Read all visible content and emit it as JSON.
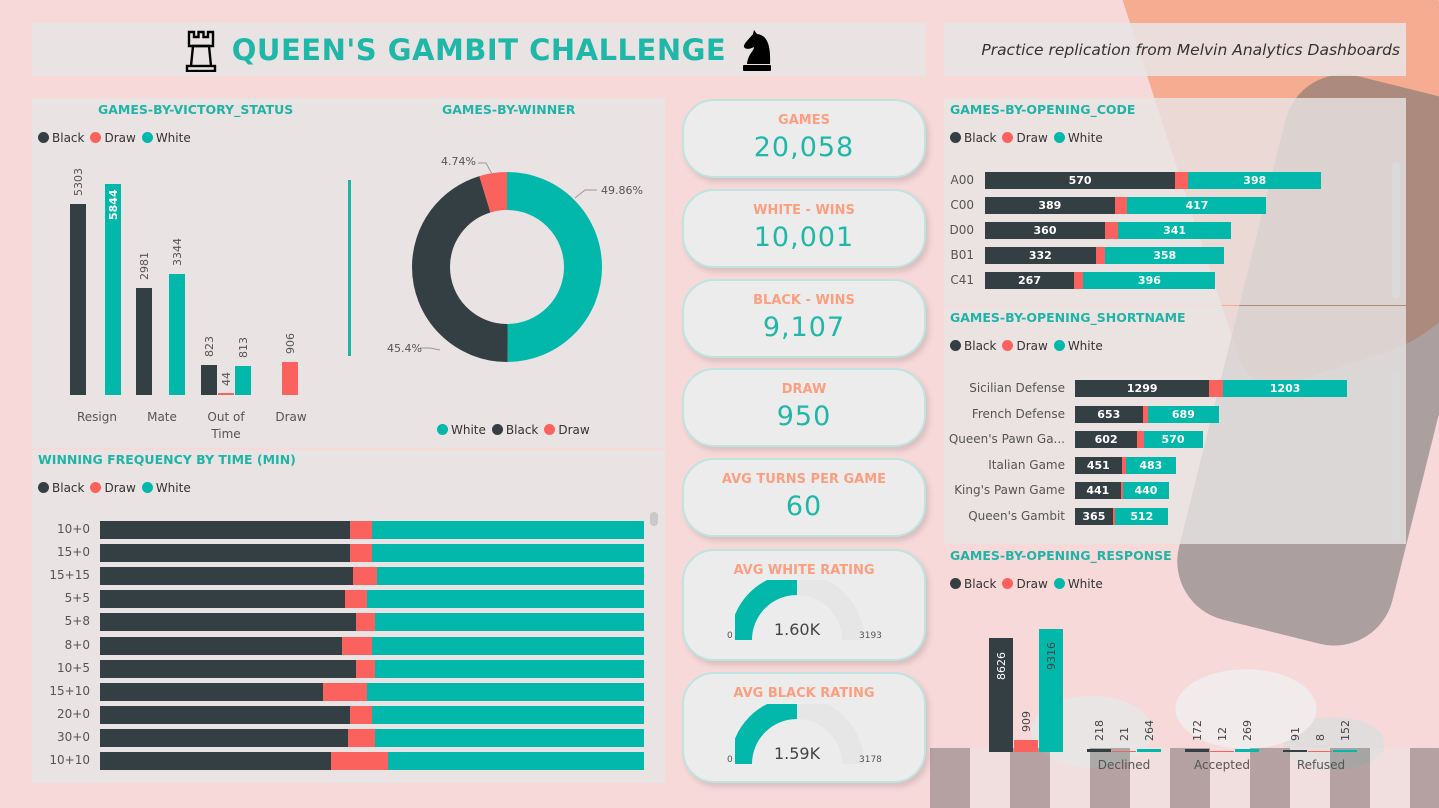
{
  "header": {
    "title": "QUEEN'S GAMBIT CHALLENGE",
    "credit": "Practice replication from Melvin Analytics Dashboards",
    "left_icon": "rook-icon",
    "right_icon": "knight-icon"
  },
  "legend": {
    "black": "Black",
    "draw": "Draw",
    "white": "White"
  },
  "colors": {
    "black": "#343f44",
    "draw": "#fc625d",
    "white": "#01b8aa",
    "accent": "#1fb8a8",
    "kpi_label": "#fb9f80"
  },
  "victory_status": {
    "title": "GAMES-BY-VICTORY_STATUS",
    "chart_data": {
      "type": "bar",
      "categories": [
        "Resign",
        "Mate",
        "Out of Time",
        "Draw"
      ],
      "series": [
        {
          "name": "Black",
          "values": [
            5303,
            2981,
            823,
            null
          ]
        },
        {
          "name": "Draw",
          "values": [
            null,
            null,
            44,
            906
          ]
        },
        {
          "name": "White",
          "values": [
            5844,
            3344,
            813,
            null
          ]
        }
      ]
    },
    "labels": {
      "resign": "Resign",
      "mate": "Mate",
      "oot_1": "Out of",
      "oot_2": "Time",
      "draw": "Draw"
    }
  },
  "winner": {
    "title": "GAMES-BY-WINNER",
    "chart_data": {
      "type": "pie",
      "labels": [
        "White",
        "Black",
        "Draw"
      ],
      "values": [
        49.86,
        45.4,
        4.74
      ]
    },
    "pct_white": "49.86%",
    "pct_black": "45.4%",
    "pct_draw": "4.74%"
  },
  "kpis": {
    "games": {
      "label": "GAMES",
      "value": "20,058"
    },
    "white_wins": {
      "label": "WHITE - WINS",
      "value": "10,001"
    },
    "black_wins": {
      "label": "BLACK - WINS",
      "value": "9,107"
    },
    "draw": {
      "label": "DRAW",
      "value": "950"
    },
    "avg_turns": {
      "label": "AVG TURNS PER GAME",
      "value": "60"
    },
    "avg_white_rating": {
      "label": "AVG WHITE RATING",
      "value": "1.60K",
      "min": "0",
      "max": "3193",
      "fill": 0.5
    },
    "avg_black_rating": {
      "label": "AVG BLACK RATING",
      "value": "1.59K",
      "min": "0",
      "max": "3178",
      "fill": 0.5
    }
  },
  "time_freq": {
    "title": "WINNING FREQUENCY BY TIME (MIN)",
    "chart_data": {
      "type": "bar",
      "orientation": "horizontal-100%-stacked",
      "categories": [
        "10+0",
        "15+0",
        "15+15",
        "5+5",
        "5+8",
        "8+0",
        "10+5",
        "15+10",
        "20+0",
        "30+0",
        "10+10"
      ],
      "series": [
        {
          "name": "Black",
          "values": [
            46,
            46,
            46.5,
            45,
            47,
            44.5,
            47,
            41,
            46,
            45.5,
            42.5
          ]
        },
        {
          "name": "Draw",
          "values": [
            4,
            4,
            4.5,
            4,
            3.5,
            5.5,
            3.5,
            8,
            4,
            5,
            10.5
          ]
        },
        {
          "name": "White",
          "values": [
            50,
            50,
            49,
            51,
            49.5,
            50,
            49.5,
            51,
            50,
            49.5,
            47
          ]
        }
      ]
    }
  },
  "opening_code": {
    "title": "GAMES-BY-OPENING_CODE",
    "chart_data": {
      "type": "bar",
      "orientation": "horizontal-stacked",
      "categories": [
        "A00",
        "C00",
        "D00",
        "B01",
        "C41"
      ],
      "series": [
        {
          "name": "Black",
          "values": [
            570,
            389,
            360,
            332,
            267
          ]
        },
        {
          "name": "Draw",
          "values": [
            40,
            38,
            38,
            28,
            28
          ]
        },
        {
          "name": "White",
          "values": [
            398,
            417,
            341,
            358,
            396
          ]
        }
      ]
    }
  },
  "opening_shortname": {
    "title": "GAMES-BY-OPENING_SHORTNAME",
    "chart_data": {
      "type": "bar",
      "orientation": "horizontal-stacked",
      "categories": [
        "Sicilian Defense",
        "French Defense",
        "Queen's Pawn Ga...",
        "Italian Game",
        "King's Pawn Game",
        "Queen's Gambit"
      ],
      "series": [
        {
          "name": "Black",
          "values": [
            1299,
            653,
            602,
            451,
            441,
            365
          ]
        },
        {
          "name": "Draw",
          "values": [
            130,
            50,
            60,
            40,
            25,
            25
          ]
        },
        {
          "name": "White",
          "values": [
            1203,
            689,
            570,
            483,
            440,
            512
          ]
        }
      ]
    }
  },
  "opening_response": {
    "title": "GAMES-BY-OPENING_RESPONSE",
    "chart_data": {
      "type": "bar",
      "categories": [
        "",
        "Declined",
        "Accepted",
        "Refused"
      ],
      "series": [
        {
          "name": "Black",
          "values": [
            8626,
            218,
            172,
            91
          ]
        },
        {
          "name": "Draw",
          "values": [
            909,
            21,
            12,
            8
          ]
        },
        {
          "name": "White",
          "values": [
            9316,
            264,
            269,
            152
          ]
        }
      ]
    }
  }
}
